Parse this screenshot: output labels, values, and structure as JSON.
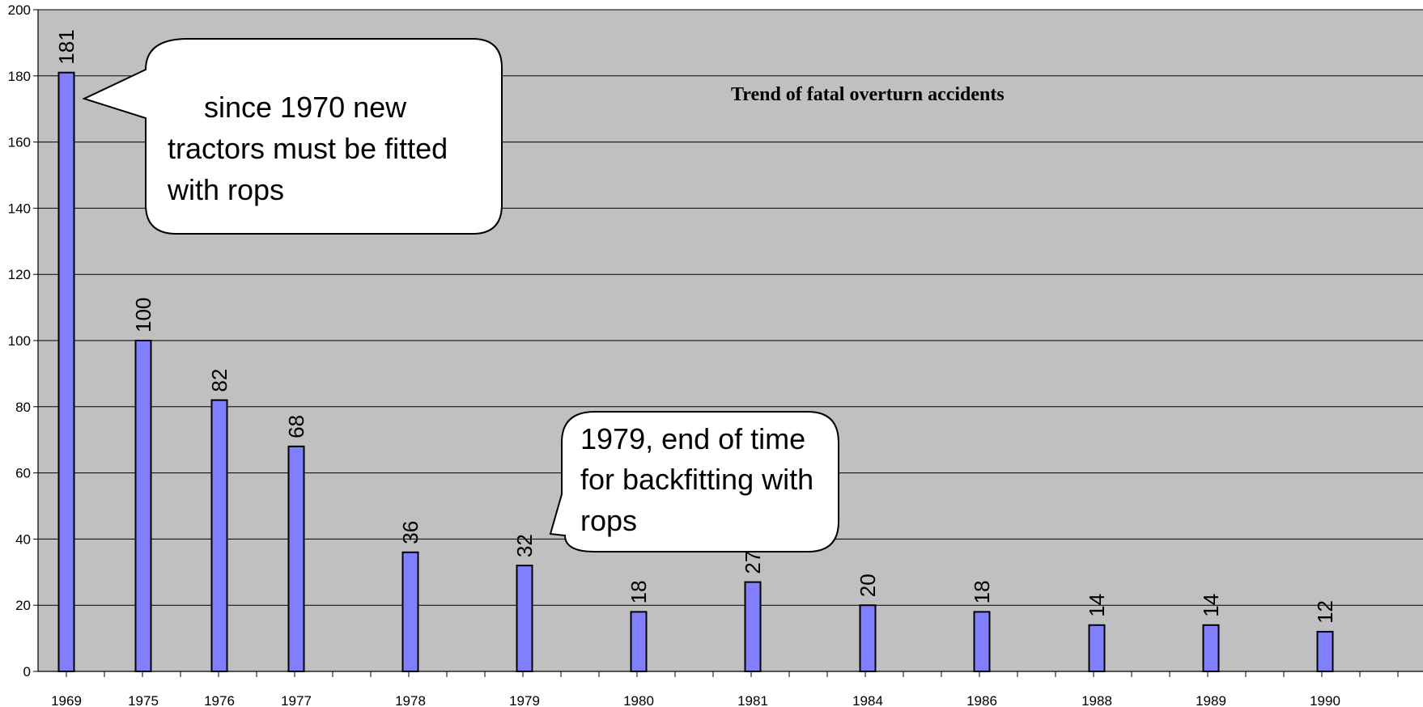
{
  "chart_data": {
    "type": "bar",
    "title": "Trend of fatal overturn accidents",
    "xlabel": "",
    "ylabel": "",
    "ylim": [
      0,
      200
    ],
    "yticks": [
      0,
      20,
      40,
      60,
      80,
      100,
      120,
      140,
      160,
      180,
      200
    ],
    "grid": true,
    "categories": [
      "1969",
      "1975",
      "1976",
      "1977",
      "1978",
      "1979",
      "1980",
      "1981",
      "1984",
      "1986",
      "1988",
      "1989",
      "1990"
    ],
    "values": [
      181,
      100,
      82,
      68,
      36,
      32,
      18,
      27,
      20,
      18,
      14,
      14,
      12
    ],
    "data_labels": [
      "181",
      "100",
      "82",
      "68",
      "36",
      "32",
      "18",
      "27",
      "20",
      "18",
      "14",
      "14",
      "12"
    ],
    "annotations": [
      {
        "lines": [
          "since 1970 new",
          "tractors must be fitted",
          "with rops"
        ]
      },
      {
        "lines": [
          "1979, end of time",
          "for backfitting with",
          "rops"
        ]
      }
    ]
  },
  "colors": {
    "plot_background": "#c0c0c0",
    "bar_fill": "#8080ff",
    "bar_stroke": "#000000",
    "grid": "#000000",
    "callout_fill": "#ffffff"
  }
}
